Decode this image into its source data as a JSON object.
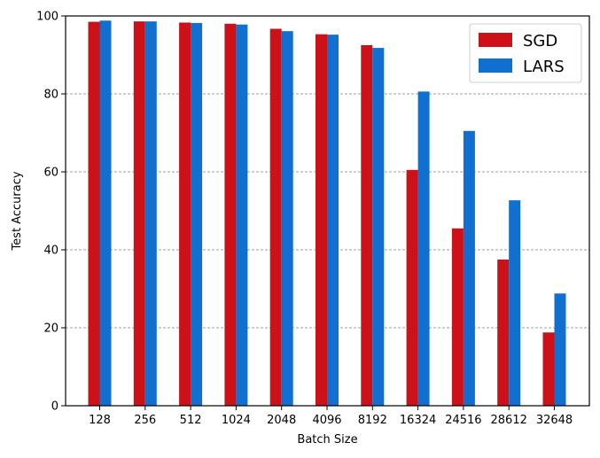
{
  "chart_data": {
    "type": "bar",
    "title": "",
    "xlabel": "Batch Size",
    "ylabel": "Test Accuracy",
    "categories": [
      "128",
      "256",
      "512",
      "1024",
      "2048",
      "4096",
      "8192",
      "16324",
      "24516",
      "28612",
      "32648"
    ],
    "series": [
      {
        "name": "SGD",
        "color": "#cc1119",
        "values": [
          98.5,
          98.6,
          98.3,
          98.0,
          96.7,
          95.3,
          92.5,
          60.5,
          45.5,
          37.5,
          18.8
        ]
      },
      {
        "name": "LARS",
        "color": "#116fcf",
        "values": [
          98.8,
          98.6,
          98.2,
          97.8,
          96.1,
          95.2,
          91.8,
          80.6,
          70.5,
          52.7,
          28.8
        ]
      }
    ],
    "ylim": [
      0,
      100
    ],
    "yticks": [
      0,
      20,
      40,
      60,
      80,
      100
    ],
    "grid": {
      "y": true,
      "x": false
    },
    "legend": {
      "position": "top-right"
    }
  }
}
